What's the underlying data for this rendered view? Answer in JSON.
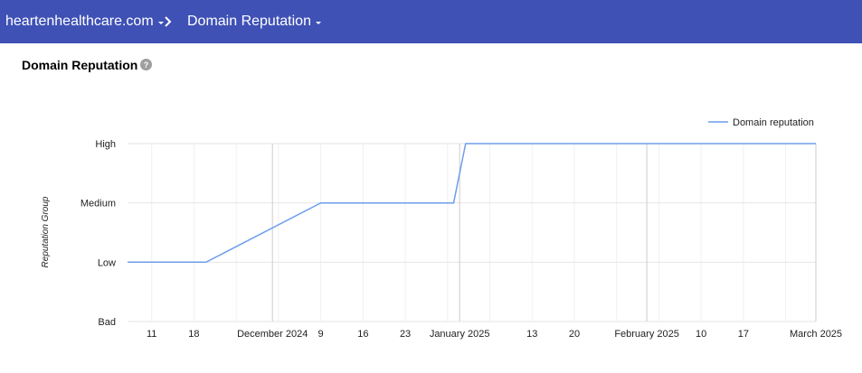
{
  "header": {
    "domain_label": "heartenhealthcare.com",
    "section_label": "Domain Reputation"
  },
  "page": {
    "title": "Domain Reputation"
  },
  "icons": {
    "domain_dropdown": "caret-down-icon",
    "section_dropdown": "caret-down-icon",
    "breadcrumb_separator": "chevron-right-icon",
    "help": "help-circle-icon"
  },
  "colors": {
    "header_bg": "#3f51b5",
    "series_line": "#6d9eeb",
    "gridline": "#e6e6e6"
  },
  "chart_data": {
    "type": "line",
    "ylabel": "Reputation Group",
    "xlabel": "",
    "y_categories": [
      "Bad",
      "Low",
      "Medium",
      "High"
    ],
    "x_tick_labels": [
      {
        "label": "11",
        "date": "2024-11-11",
        "major": false
      },
      {
        "label": "18",
        "date": "2024-11-18",
        "major": false
      },
      {
        "label": "December 2024",
        "date": "2024-12-01",
        "major": true
      },
      {
        "label": "9",
        "date": "2024-12-09",
        "major": false
      },
      {
        "label": "16",
        "date": "2024-12-16",
        "major": false
      },
      {
        "label": "23",
        "date": "2024-12-23",
        "major": false
      },
      {
        "label": "January 2025",
        "date": "2025-01-01",
        "major": true
      },
      {
        "label": "13",
        "date": "2025-01-13",
        "major": false
      },
      {
        "label": "20",
        "date": "2025-01-20",
        "major": false
      },
      {
        "label": "February 2025",
        "date": "2025-02-01",
        "major": true
      },
      {
        "label": "10",
        "date": "2025-02-10",
        "major": false
      },
      {
        "label": "17",
        "date": "2025-02-17",
        "major": false
      },
      {
        "label": "March 2025",
        "date": "2025-03-01",
        "major": true
      }
    ],
    "x_range": [
      "2024-11-07",
      "2025-03-01"
    ],
    "grid": true,
    "legend_position": "top-right",
    "series": [
      {
        "name": "Domain reputation",
        "points": [
          {
            "x": "2024-11-07",
            "y": "Low"
          },
          {
            "x": "2024-11-20",
            "y": "Low"
          },
          {
            "x": "2024-12-09",
            "y": "Medium"
          },
          {
            "x": "2024-12-31",
            "y": "Medium"
          },
          {
            "x": "2025-01-02",
            "y": "High"
          },
          {
            "x": "2025-03-01",
            "y": "High"
          }
        ]
      }
    ]
  }
}
